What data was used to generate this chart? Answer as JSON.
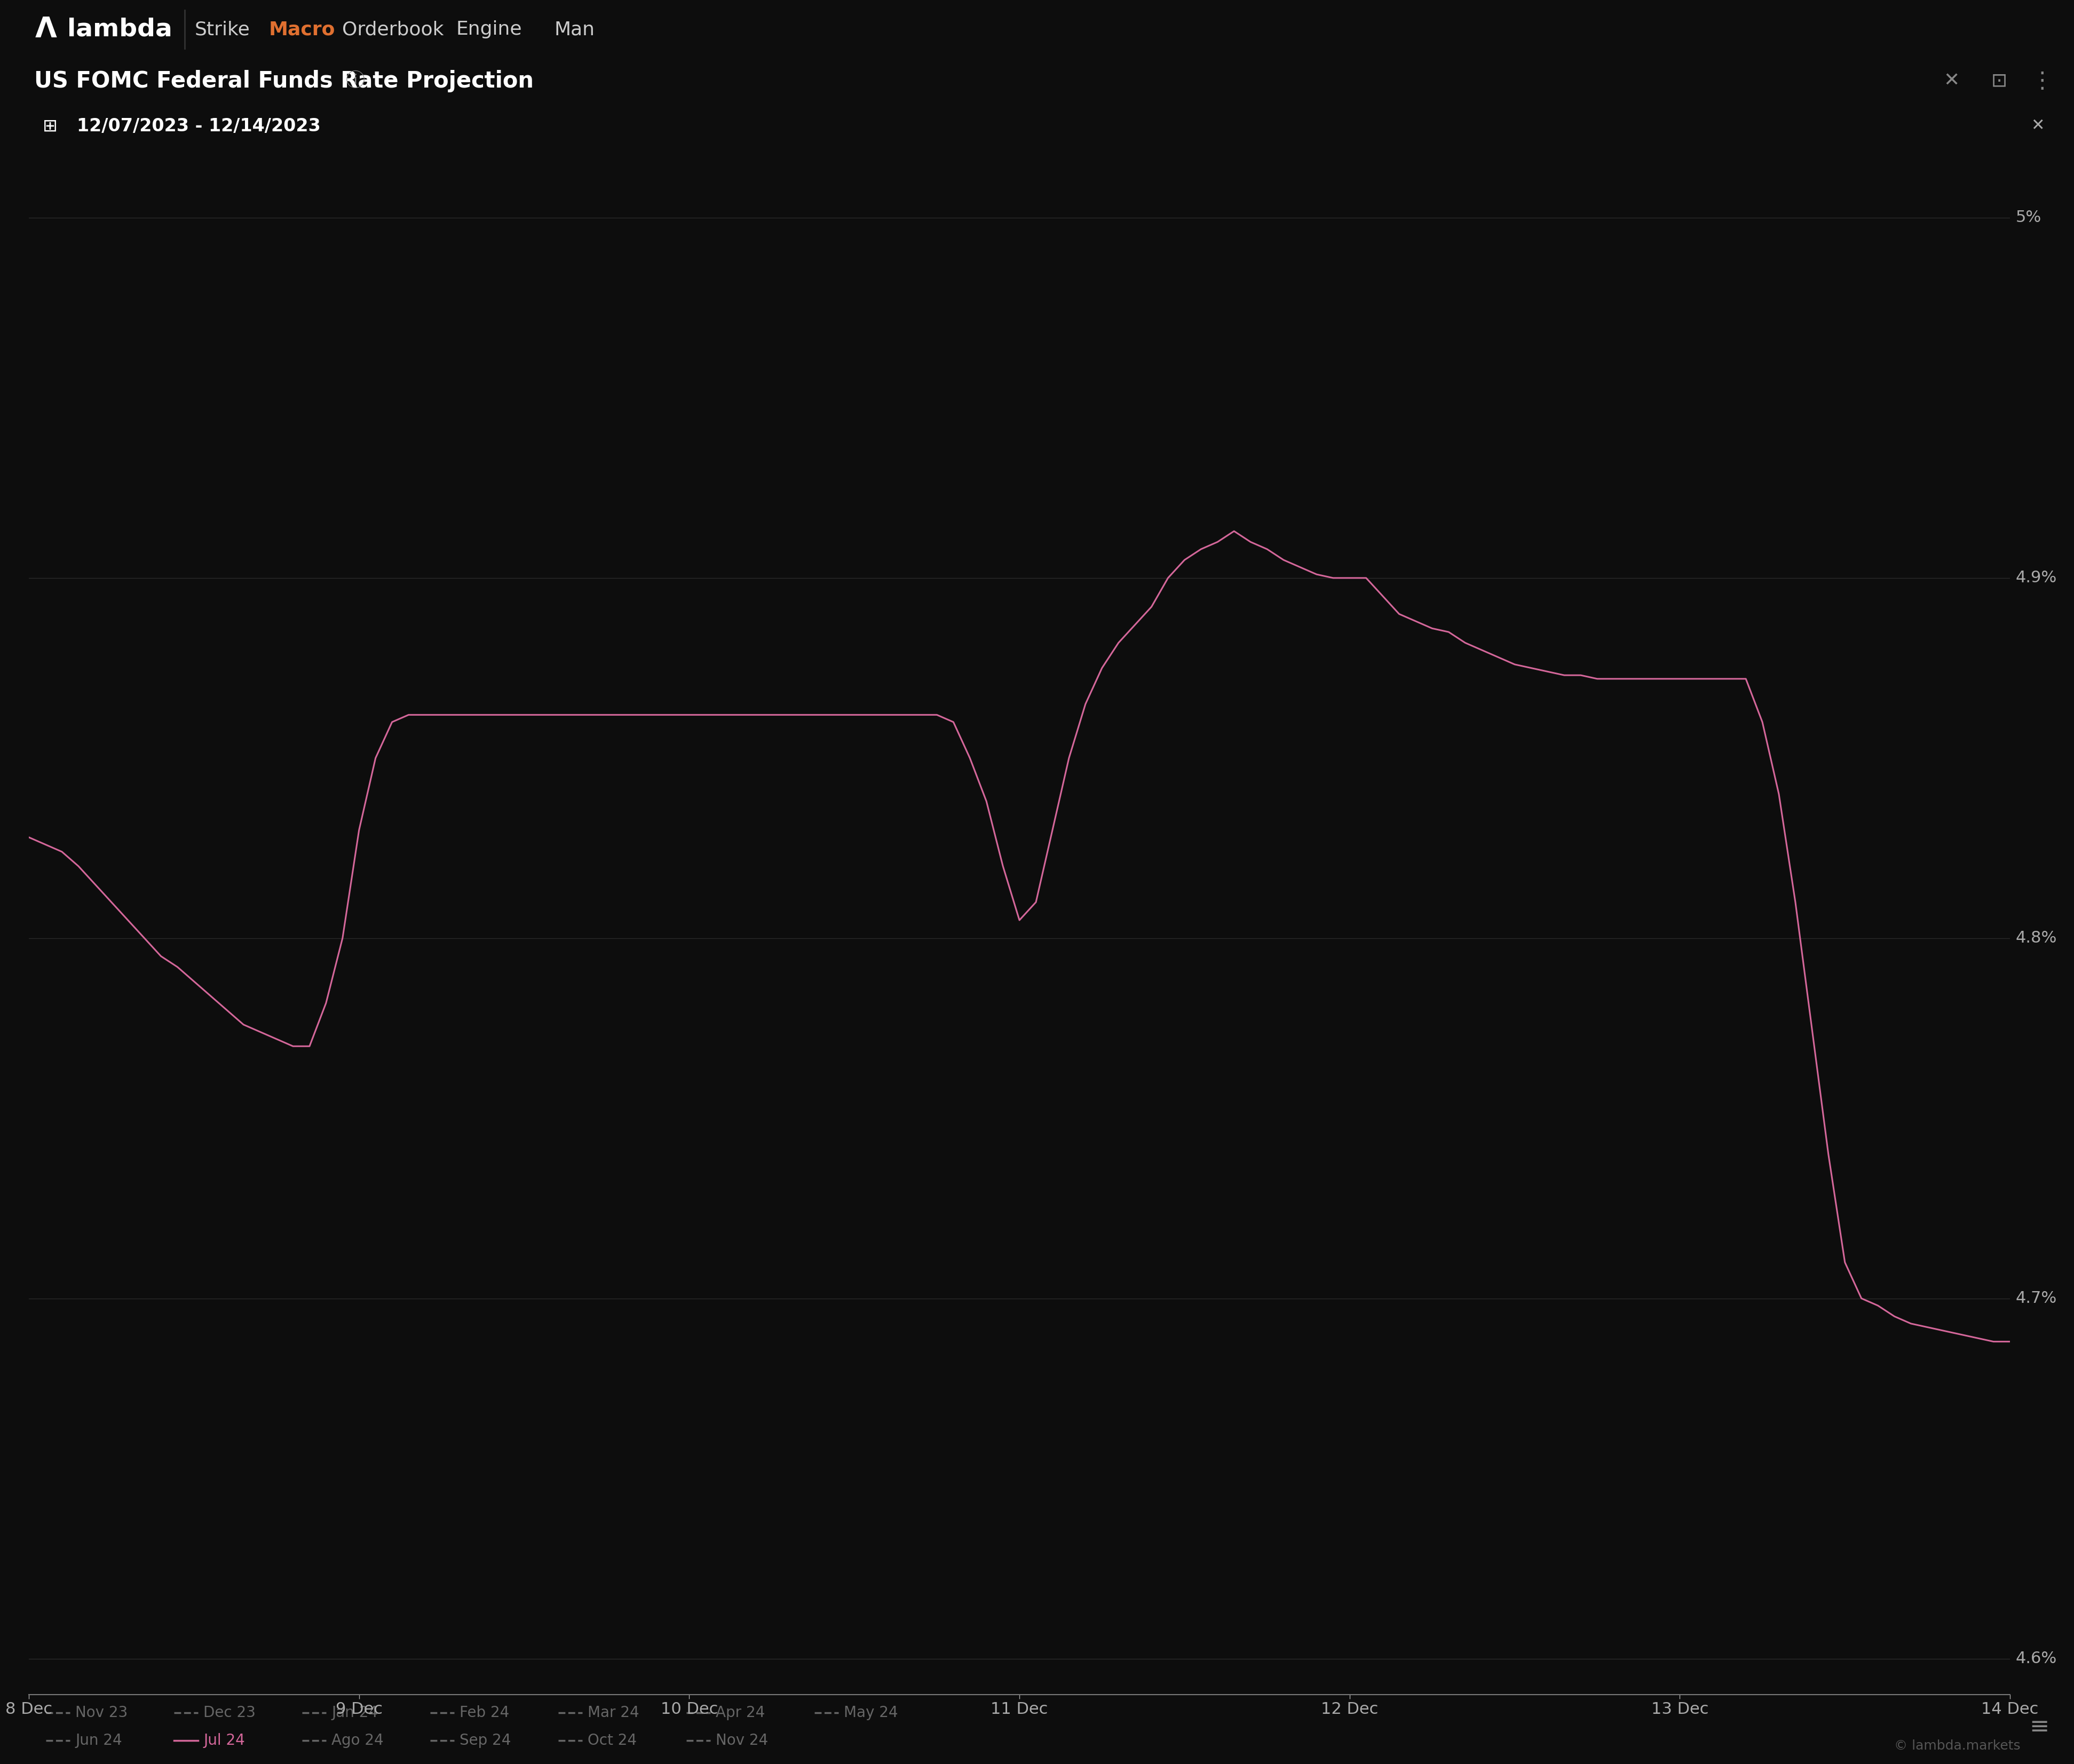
{
  "title": "US FOMC Federal Funds Rate Projection",
  "date_range": "12/07/2023 - 12/14/2023",
  "bg_color": "#0d0d0d",
  "panel_color": "#0d0d0d",
  "header_color": "#111111",
  "line_color": "#d4679a",
  "axis_label_color": "#888888",
  "tick_label_color": "#aaaaaa",
  "title_color": "#ffffff",
  "nav_bg": "#0a0a0a",
  "ylim": [
    4.59,
    5.02
  ],
  "yticks": [
    4.6,
    4.7,
    4.8,
    4.9,
    5.0
  ],
  "ytick_labels": [
    "4.6%",
    "4.7%",
    "4.8%",
    "4.9%",
    "5%"
  ],
  "xtick_labels": [
    "8 Dec",
    "9 Dec",
    "10 Dec",
    "11 Dec",
    "12 Dec",
    "13 Dec",
    "14 Dec"
  ],
  "x_values": [
    0,
    0.05,
    0.1,
    0.15,
    0.2,
    0.25,
    0.3,
    0.35,
    0.4,
    0.45,
    0.5,
    0.55,
    0.6,
    0.65,
    0.7,
    0.75,
    0.8,
    0.85,
    0.9,
    0.95,
    1.0,
    1.05,
    1.1,
    1.15,
    1.2,
    1.25,
    1.3,
    1.35,
    1.4,
    1.45,
    1.5,
    1.55,
    1.6,
    1.65,
    1.7,
    1.75,
    1.8,
    1.85,
    1.9,
    1.95,
    2.0,
    2.05,
    2.1,
    2.15,
    2.2,
    2.25,
    2.3,
    2.35,
    2.4,
    2.45,
    2.5,
    2.55,
    2.6,
    2.65,
    2.7,
    2.75,
    2.8,
    2.85,
    2.9,
    2.95,
    3.0,
    3.05,
    3.1,
    3.15,
    3.2,
    3.25,
    3.3,
    3.35,
    3.4,
    3.45,
    3.5,
    3.55,
    3.6,
    3.65,
    3.7,
    3.75,
    3.8,
    3.85,
    3.9,
    3.95,
    4.0,
    4.05,
    4.1,
    4.15,
    4.2,
    4.25,
    4.3,
    4.35,
    4.4,
    4.45,
    4.5,
    4.55,
    4.6,
    4.65,
    4.7,
    4.75,
    4.8,
    4.85,
    4.9,
    4.95,
    5.0,
    5.05,
    5.1,
    5.15,
    5.2,
    5.25,
    5.3,
    5.35,
    5.4,
    5.45,
    5.5,
    5.55,
    5.6,
    5.65,
    5.7,
    5.75,
    5.8,
    5.85,
    5.9,
    5.95,
    6.0
  ],
  "y_values": [
    4.828,
    4.826,
    4.824,
    4.82,
    4.815,
    4.81,
    4.805,
    4.8,
    4.795,
    4.792,
    4.788,
    4.784,
    4.78,
    4.776,
    4.774,
    4.772,
    4.77,
    4.77,
    4.782,
    4.8,
    4.83,
    4.85,
    4.86,
    4.862,
    4.862,
    4.862,
    4.862,
    4.862,
    4.862,
    4.862,
    4.862,
    4.862,
    4.862,
    4.862,
    4.862,
    4.862,
    4.862,
    4.862,
    4.862,
    4.862,
    4.862,
    4.862,
    4.862,
    4.862,
    4.862,
    4.862,
    4.862,
    4.862,
    4.862,
    4.862,
    4.862,
    4.862,
    4.862,
    4.862,
    4.862,
    4.862,
    4.86,
    4.85,
    4.838,
    4.82,
    4.805,
    4.81,
    4.83,
    4.85,
    4.865,
    4.875,
    4.882,
    4.887,
    4.892,
    4.9,
    4.905,
    4.908,
    4.91,
    4.913,
    4.91,
    4.908,
    4.905,
    4.903,
    4.901,
    4.9,
    4.9,
    4.9,
    4.895,
    4.89,
    4.888,
    4.886,
    4.885,
    4.882,
    4.88,
    4.878,
    4.876,
    4.875,
    4.874,
    4.873,
    4.873,
    4.872,
    4.872,
    4.872,
    4.872,
    4.872,
    4.872,
    4.872,
    4.872,
    4.872,
    4.872,
    4.86,
    4.84,
    4.81,
    4.775,
    4.74,
    4.71,
    4.7,
    4.698,
    4.695,
    4.693,
    4.692,
    4.691,
    4.69,
    4.689,
    4.688,
    4.688
  ],
  "legend_items": [
    {
      "label": "Nov 23",
      "color": "#666666",
      "dash": true
    },
    {
      "label": "Dec 23",
      "color": "#666666",
      "dash": true
    },
    {
      "label": "Jan 24",
      "color": "#666666",
      "dash": true
    },
    {
      "label": "Feb 24",
      "color": "#666666",
      "dash": true
    },
    {
      "label": "Mar 24",
      "color": "#666666",
      "dash": true
    },
    {
      "label": "Apr 24",
      "color": "#666666",
      "dash": true
    },
    {
      "label": "May 24",
      "color": "#666666",
      "dash": true
    },
    {
      "label": "Jun 24",
      "color": "#666666",
      "dash": true
    },
    {
      "label": "Jul 24",
      "color": "#d4679a",
      "dash": false
    },
    {
      "label": "Ago 24",
      "color": "#666666",
      "dash": true
    },
    {
      "label": "Sep 24",
      "color": "#666666",
      "dash": true
    },
    {
      "label": "Oct 24",
      "color": "#666666",
      "dash": true
    },
    {
      "label": "Nov 24",
      "color": "#666666",
      "dash": true
    }
  ],
  "watermark": "© lambda.markets",
  "nav_items": [
    "Strike",
    "Macro",
    "Orderbook",
    "Engine",
    "Man"
  ],
  "nav_active": "Macro",
  "nav_active_color": "#e07030"
}
